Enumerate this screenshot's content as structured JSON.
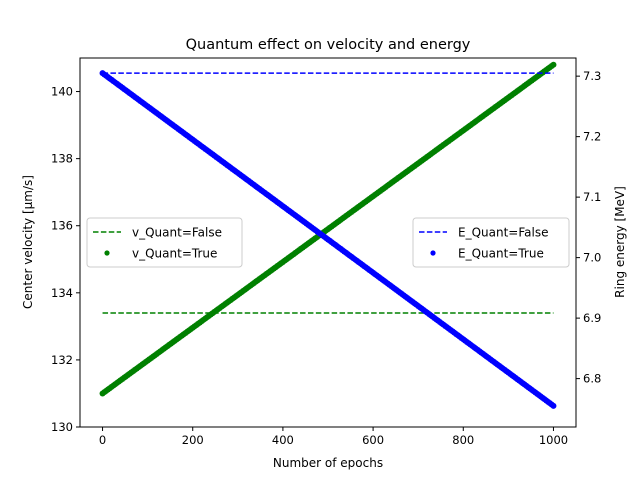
{
  "chart_data": {
    "type": "scatter",
    "title": "Quantum effect on velocity and energy",
    "xlabel": "Number of epochs",
    "ylabel_left": "Center velocity [μm/s]",
    "ylabel_right": "Ring energy [MeV]",
    "xlim": [
      -50,
      1050
    ],
    "ylim_left": [
      130,
      141
    ],
    "ylim_right": [
      6.72,
      7.33
    ],
    "x_ticks": [
      0,
      200,
      400,
      600,
      800,
      1000
    ],
    "y_left_ticks": [
      130,
      132,
      134,
      136,
      138,
      140
    ],
    "y_right_ticks": [
      6.8,
      6.9,
      7.0,
      7.1,
      7.2,
      7.3
    ],
    "grid": false,
    "series": [
      {
        "name": "v_Quant=False",
        "axis": "left",
        "style": "dashed-line",
        "color": "#008000",
        "x": [
          0,
          1000
        ],
        "y": [
          133.4,
          133.4
        ]
      },
      {
        "name": "v_Quant=True",
        "axis": "left",
        "style": "points",
        "color": "#008000",
        "x": [
          0,
          1000
        ],
        "y": [
          131.0,
          140.8
        ]
      },
      {
        "name": "E_Quant=False",
        "axis": "right",
        "style": "dashed-line",
        "color": "#0000ff",
        "x": [
          0,
          1000
        ],
        "y": [
          7.305,
          7.305
        ]
      },
      {
        "name": "E_Quant=True",
        "axis": "right",
        "style": "points",
        "color": "#0000ff",
        "x": [
          0,
          1000
        ],
        "y": [
          7.305,
          6.755
        ]
      }
    ],
    "legends": [
      {
        "position": "center-left",
        "entries": [
          "v_Quant=False",
          "v_Quant=True"
        ]
      },
      {
        "position": "center-right",
        "entries": [
          "E_Quant=False",
          "E_Quant=True"
        ]
      }
    ]
  }
}
